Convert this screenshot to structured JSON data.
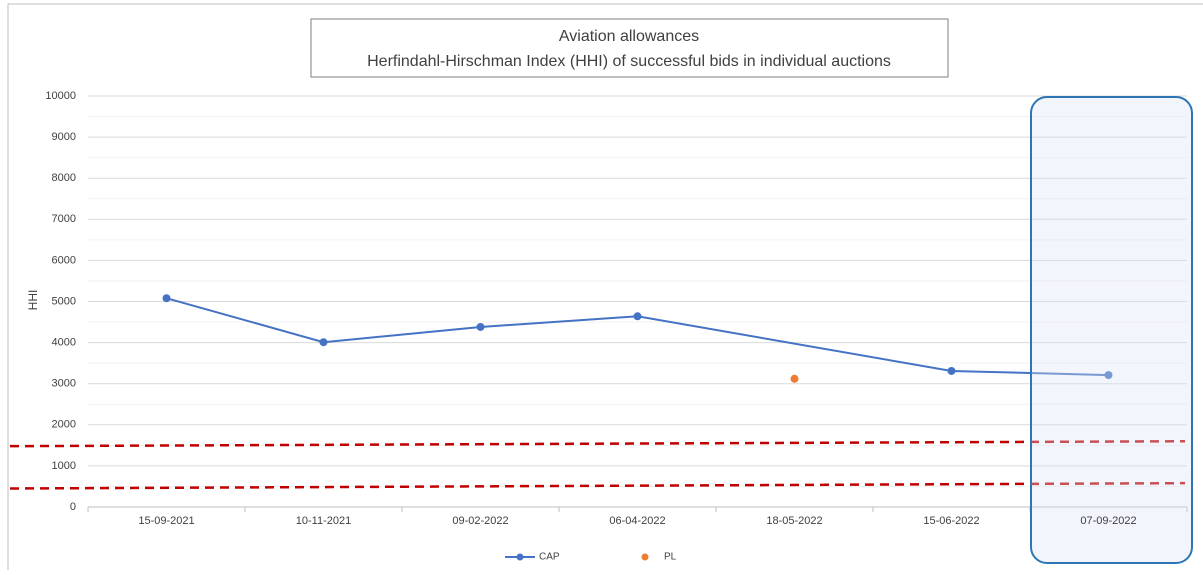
{
  "chart_data": {
    "type": "line",
    "title": "Aviation allowances",
    "subtitle": "Herfindahl-Hirschman Index (HHI) of successful bids in individual auctions",
    "y_label": "HHI",
    "categories": [
      "15-09-2021",
      "10-11-2021",
      "09-02-2022",
      "06-04-2022",
      "18-05-2022",
      "15-06-2022",
      "07-09-2022"
    ],
    "series": [
      {
        "name": "CAP",
        "color": "#4472c4",
        "line": true,
        "values": [
          5080,
          4010,
          4380,
          4640,
          null,
          3310,
          3210
        ]
      },
      {
        "name": "PL",
        "color": "#ed7d31",
        "line": false,
        "values": [
          null,
          null,
          null,
          null,
          3120,
          null,
          null
        ]
      }
    ],
    "connect_nulls": true,
    "reference_lines": [
      {
        "color": "#c00000",
        "values": [
          1480,
          1600
        ]
      },
      {
        "color": "#c00000",
        "values": [
          450,
          580
        ]
      }
    ],
    "ylim": [
      0,
      10000
    ],
    "yticks": [
      0,
      1000,
      2000,
      3000,
      4000,
      5000,
      6000,
      7000,
      8000,
      9000,
      10000
    ],
    "grid": true,
    "minor_grid": true,
    "legend": "bottom"
  }
}
